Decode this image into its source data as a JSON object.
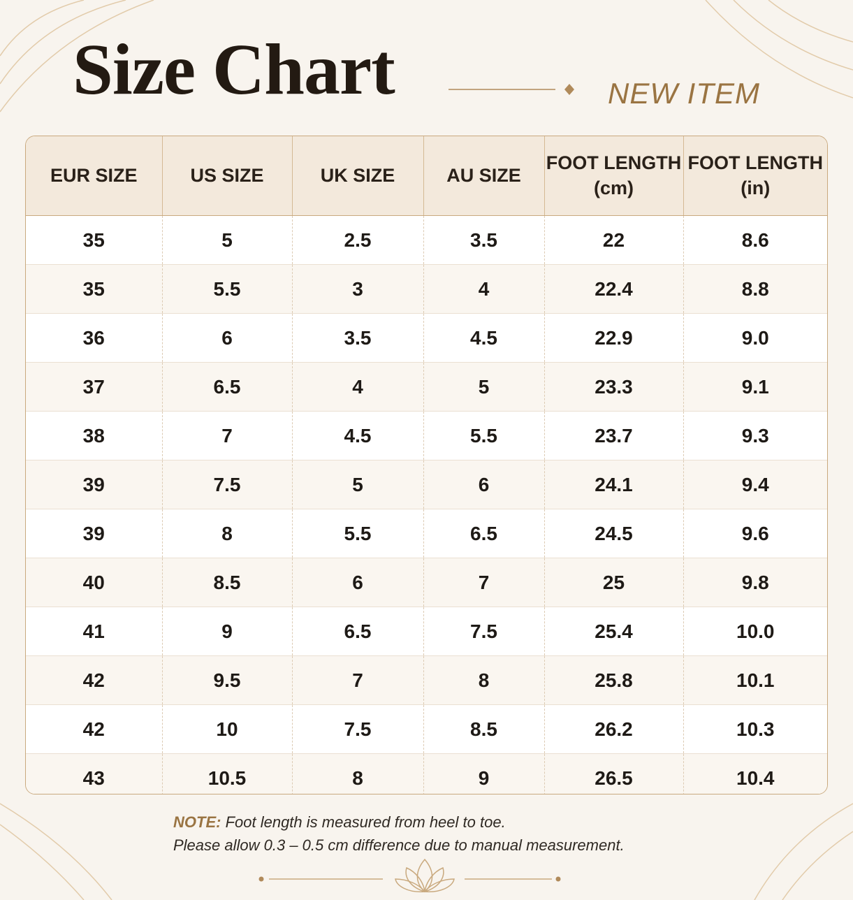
{
  "header": {
    "title": "Size Chart",
    "badge": "NEW ITEM"
  },
  "table": {
    "columns": [
      [
        "EUR SIZE"
      ],
      [
        "US SIZE"
      ],
      [
        "UK SIZE"
      ],
      [
        "AU SIZE"
      ],
      [
        "FOOT LENGTH",
        "(cm)"
      ],
      [
        "FOOT LENGTH",
        "(in)"
      ]
    ],
    "rows": [
      [
        "35",
        "5",
        "2.5",
        "3.5",
        "22",
        "8.6"
      ],
      [
        "35",
        "5.5",
        "3",
        "4",
        "22.4",
        "8.8"
      ],
      [
        "36",
        "6",
        "3.5",
        "4.5",
        "22.9",
        "9.0"
      ],
      [
        "37",
        "6.5",
        "4",
        "5",
        "23.3",
        "9.1"
      ],
      [
        "38",
        "7",
        "4.5",
        "5.5",
        "23.7",
        "9.3"
      ],
      [
        "39",
        "7.5",
        "5",
        "6",
        "24.1",
        "9.4"
      ],
      [
        "39",
        "8",
        "5.5",
        "6.5",
        "24.5",
        "9.6"
      ],
      [
        "40",
        "8.5",
        "6",
        "7",
        "25",
        "9.8"
      ],
      [
        "41",
        "9",
        "6.5",
        "7.5",
        "25.4",
        "10.0"
      ],
      [
        "42",
        "9.5",
        "7",
        "8",
        "25.8",
        "10.1"
      ],
      [
        "42",
        "10",
        "7.5",
        "8.5",
        "26.2",
        "10.3"
      ],
      [
        "43",
        "10.5",
        "8",
        "9",
        "26.5",
        "10.4"
      ]
    ]
  },
  "note": {
    "label": "NOTE:",
    "lines": [
      "Foot length is measured from heel to toe.",
      "Please allow 0.3 – 0.5 cm difference due to manual measurement."
    ]
  }
}
